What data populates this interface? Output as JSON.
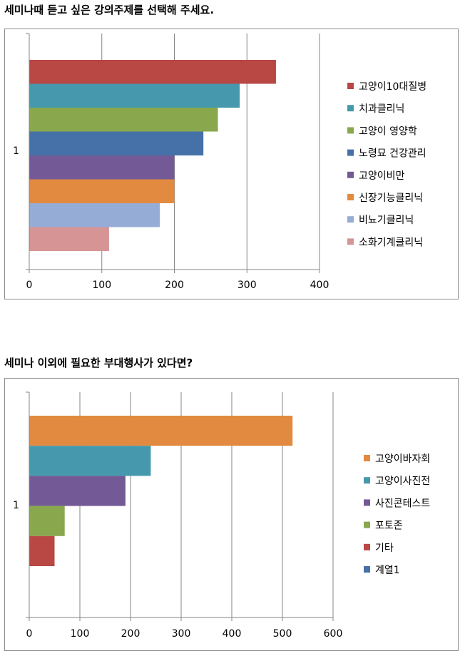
{
  "chart_data": [
    {
      "type": "bar",
      "orientation": "horizontal",
      "title": "세미나때 듣고 싶은 강의주제를 선택해 주세요.",
      "categories": [
        "1"
      ],
      "xlim": [
        0,
        400
      ],
      "xticks": [
        0,
        100,
        200,
        300,
        400
      ],
      "grid": true,
      "legend_position": "right",
      "series": [
        {
          "name": "고양이10대질병",
          "value": 340,
          "color": "#b94744"
        },
        {
          "name": "치과클리닉",
          "value": 290,
          "color": "#4699ad"
        },
        {
          "name": "고양이 영양학",
          "value": 260,
          "color": "#89a84e"
        },
        {
          "name": "노령묘 건강관리",
          "value": 240,
          "color": "#4571a8"
        },
        {
          "name": "고양이비만",
          "value": 200,
          "color": "#735a96"
        },
        {
          "name": "신장기능클리닉",
          "value": 200,
          "color": "#e28a3f"
        },
        {
          "name": "비뇨기클리닉",
          "value": 180,
          "color": "#95add6"
        },
        {
          "name": "소화기계클리닉",
          "value": 110,
          "color": "#d69494"
        }
      ]
    },
    {
      "type": "bar",
      "orientation": "horizontal",
      "title": "세미나 이외에 필요한 부대행사가 있다면?",
      "categories": [
        "1"
      ],
      "xlim": [
        0,
        600
      ],
      "xticks": [
        0,
        100,
        200,
        300,
        400,
        500,
        600
      ],
      "grid": true,
      "legend_position": "right",
      "series": [
        {
          "name": "고양이바자회",
          "value": 520,
          "color": "#e28a3f"
        },
        {
          "name": "고양이사진전",
          "value": 240,
          "color": "#4699ad"
        },
        {
          "name": "사진콘테스트",
          "value": 190,
          "color": "#735a96"
        },
        {
          "name": "포토존",
          "value": 70,
          "color": "#89a84e"
        },
        {
          "name": "기타",
          "value": 50,
          "color": "#b94744"
        },
        {
          "name": "계열1",
          "value": null,
          "color": "#4571a8"
        }
      ]
    }
  ]
}
